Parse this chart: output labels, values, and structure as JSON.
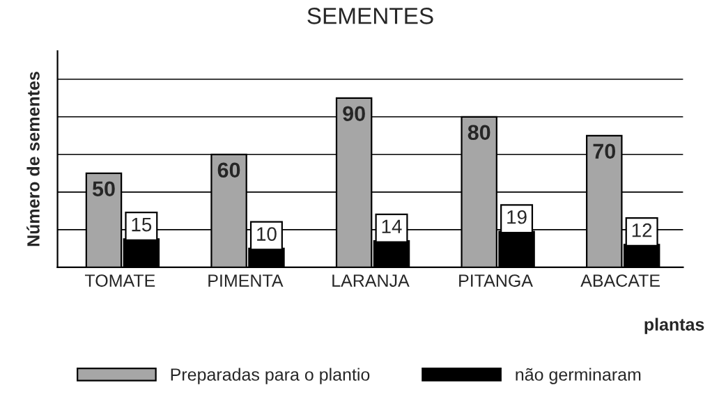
{
  "chart_data": {
    "type": "bar",
    "title": "SEMENTES",
    "xlabel": "plantas",
    "ylabel": "Número de sementes",
    "categories": [
      "TOMATE",
      "PIMENTA",
      "LARANJA",
      "PITANGA",
      "ABACATE"
    ],
    "series": [
      {
        "name": "Preparadas para o plantio",
        "color": "#a6a6a6",
        "values": [
          50,
          60,
          90,
          80,
          70
        ]
      },
      {
        "name": "não germinaram",
        "color": "#000000",
        "values": [
          15,
          10,
          14,
          19,
          12
        ]
      }
    ],
    "ylim": [
      0,
      115
    ],
    "yticks": [
      {
        "value": 20,
        "label": null
      },
      {
        "value": 40,
        "label": null
      },
      {
        "value": 60,
        "label": null
      },
      {
        "value": 80,
        "label": null
      },
      {
        "value": 100,
        "label": null
      }
    ],
    "grid": "y",
    "data_labels": true,
    "legend": "bottom"
  }
}
